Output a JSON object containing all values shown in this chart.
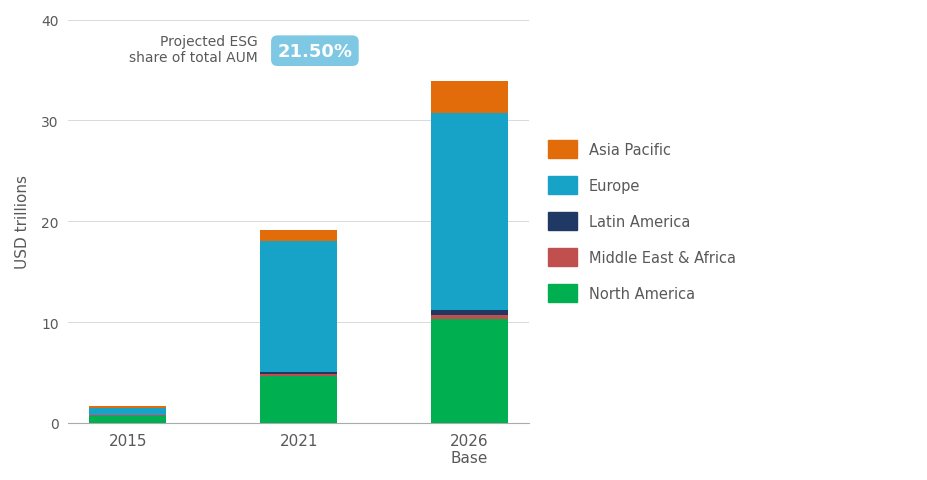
{
  "categories": [
    "2015",
    "2021",
    "2026\nBase"
  ],
  "regions": [
    "North America",
    "Middle East & Africa",
    "Latin America",
    "Europe",
    "Asia Pacific"
  ],
  "colors": {
    "North America": "#00b050",
    "Middle East & Africa": "#c0504d",
    "Latin America": "#1f3864",
    "Europe": "#17a3c8",
    "Asia Pacific": "#e36c0a"
  },
  "values": {
    "North America": [
      0.7,
      4.6,
      10.3
    ],
    "Middle East & Africa": [
      0.05,
      0.2,
      0.4
    ],
    "Latin America": [
      0.05,
      0.2,
      0.5
    ],
    "Europe": [
      0.7,
      13.0,
      19.5
    ],
    "Asia Pacific": [
      0.2,
      1.1,
      3.2
    ]
  },
  "ylabel": "USD trillions",
  "ylim": [
    0,
    40
  ],
  "yticks": [
    0,
    10,
    20,
    30,
    40
  ],
  "annotation_text": "Projected ESG\nshare of total AUM",
  "annotation_value": "21.50%",
  "annotation_box_color": "#7ec8e3",
  "annotation_text_color": "#595959",
  "annotation_value_color": "#ffffff",
  "background_color": "#ffffff",
  "bar_width": 0.45
}
